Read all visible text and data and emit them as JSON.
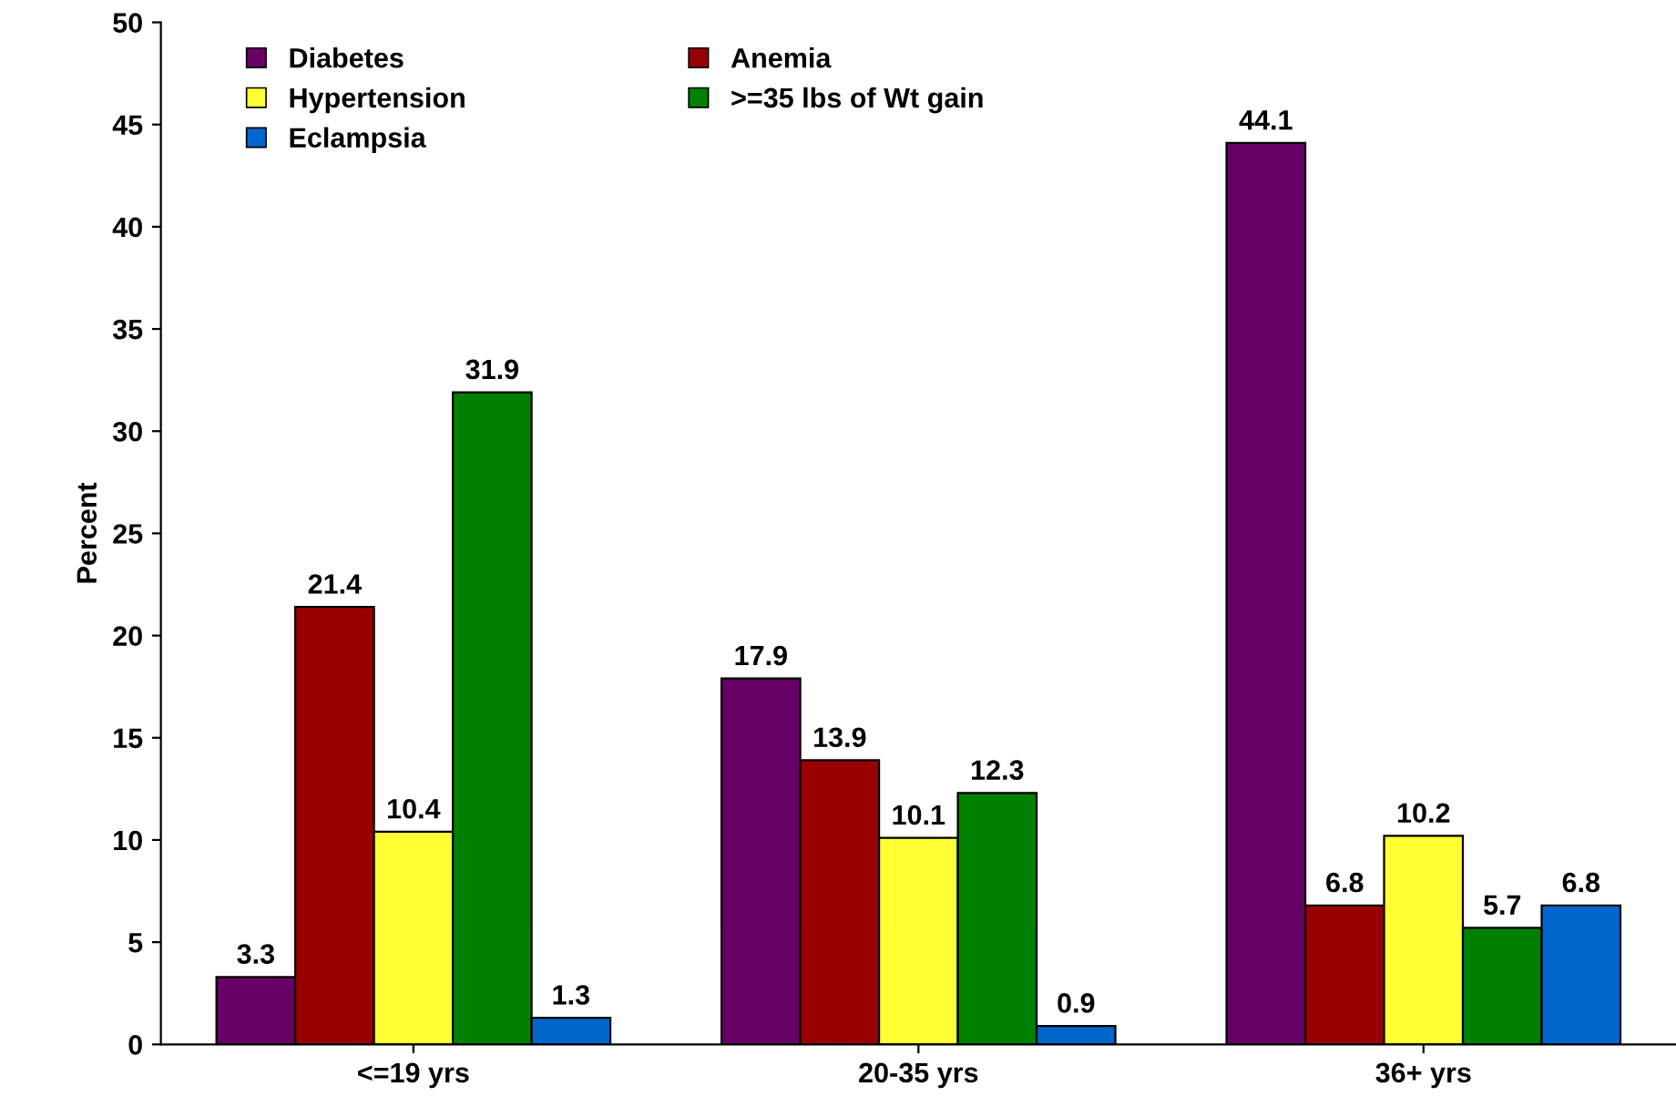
{
  "chart_data": {
    "type": "bar",
    "ylabel": "Percent",
    "categories": [
      "<=19 yrs",
      "20-35 yrs",
      "36+ yrs"
    ],
    "series": [
      {
        "name": "Diabetes",
        "color": "#660066",
        "values": [
          3.3,
          17.9,
          44.1
        ]
      },
      {
        "name": "Anemia",
        "color": "#990000",
        "values": [
          21.4,
          13.9,
          6.8
        ]
      },
      {
        "name": "Hypertension",
        "color": "#ffff33",
        "values": [
          10.4,
          10.1,
          10.2
        ]
      },
      {
        "name": ">=35 lbs of Wt gain",
        "color": "#008000",
        "values": [
          31.9,
          12.3,
          5.7
        ]
      },
      {
        "name": "Eclampsia",
        "color": "#0066cc",
        "values": [
          1.3,
          0.9,
          6.8
        ]
      }
    ],
    "ylim": [
      0,
      50
    ],
    "yticks": [
      0,
      5,
      10,
      15,
      20,
      25,
      30,
      35,
      40,
      45,
      50
    ],
    "grid": false,
    "legend": "top left",
    "data_labels": true
  }
}
